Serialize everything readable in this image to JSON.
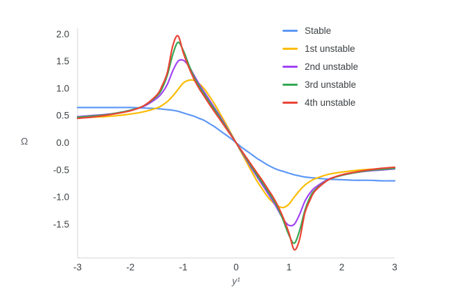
{
  "chart_data": {
    "type": "line",
    "title": "",
    "xlabel": "y¹",
    "ylabel": "Ω",
    "xlim": [
      -3,
      3
    ],
    "ylim": [
      -2.12,
      2.12
    ],
    "grid": false,
    "legend_position": "upper-right-inside",
    "x_tick_labels": [
      "-3",
      "-2",
      "-1",
      "0",
      "1",
      "2",
      "3"
    ],
    "x_tick_values": [
      -3,
      -2,
      -1,
      0,
      1,
      2,
      3
    ],
    "y_tick_labels": [
      "2.0",
      "1.5",
      "1.0",
      "0.5",
      "0.0",
      "-0.5",
      "-1.0",
      "-1.5"
    ],
    "y_tick_values": [
      2.0,
      1.5,
      1.0,
      0.5,
      0.0,
      -0.5,
      -1.0,
      -1.5
    ],
    "x": [
      -3,
      -2.75,
      -2.5,
      -2.25,
      -2,
      -1.75,
      -1.5,
      -1.4,
      -1.3,
      -1.2,
      -1.1,
      -1,
      -0.9,
      -0.8,
      -0.7,
      -0.6,
      -0.5,
      -0.4,
      -0.3,
      -0.2,
      -0.1,
      0,
      0.1,
      0.2,
      0.3,
      0.4,
      0.5,
      0.6,
      0.7,
      0.8,
      0.9,
      1,
      1.1,
      1.2,
      1.3,
      1.4,
      1.5,
      1.75,
      2,
      2.25,
      2.5,
      2.75,
      3
    ],
    "series": [
      {
        "name": "Stable",
        "color": "#5e97f6",
        "values": [
          0.65,
          0.65,
          0.65,
          0.65,
          0.65,
          0.64,
          0.63,
          0.62,
          0.61,
          0.6,
          0.58,
          0.55,
          0.52,
          0.49,
          0.45,
          0.41,
          0.35,
          0.29,
          0.22,
          0.15,
          0.08,
          0,
          -0.08,
          -0.15,
          -0.22,
          -0.29,
          -0.35,
          -0.41,
          -0.46,
          -0.5,
          -0.53,
          -0.56,
          -0.59,
          -0.61,
          -0.63,
          -0.64,
          -0.65,
          -0.67,
          -0.68,
          -0.69,
          -0.69,
          -0.7,
          -0.7
        ]
      },
      {
        "name": "1st unstable",
        "color": "#fbbc04",
        "values": [
          0.46,
          0.47,
          0.48,
          0.5,
          0.53,
          0.57,
          0.64,
          0.69,
          0.76,
          0.86,
          0.98,
          1.1,
          1.15,
          1.15,
          1.09,
          0.99,
          0.85,
          0.7,
          0.53,
          0.36,
          0.18,
          0,
          -0.18,
          -0.36,
          -0.54,
          -0.71,
          -0.86,
          -1.0,
          -1.1,
          -1.17,
          -1.19,
          -1.13,
          -1.0,
          -0.88,
          -0.78,
          -0.71,
          -0.66,
          -0.58,
          -0.54,
          -0.51,
          -0.49,
          -0.48,
          -0.47
        ]
      },
      {
        "name": "2nd unstable",
        "color": "#a142f4",
        "values": [
          0.48,
          0.5,
          0.52,
          0.55,
          0.6,
          0.67,
          0.82,
          0.92,
          1.08,
          1.32,
          1.5,
          1.52,
          1.42,
          1.25,
          1.08,
          0.93,
          0.78,
          0.63,
          0.48,
          0.32,
          0.16,
          0,
          -0.16,
          -0.32,
          -0.48,
          -0.63,
          -0.78,
          -0.93,
          -1.08,
          -1.25,
          -1.42,
          -1.52,
          -1.5,
          -1.32,
          -1.08,
          -0.92,
          -0.82,
          -0.67,
          -0.6,
          -0.55,
          -0.52,
          -0.5,
          -0.48
        ]
      },
      {
        "name": "3rd unstable",
        "color": "#34a853",
        "values": [
          0.47,
          0.49,
          0.51,
          0.55,
          0.6,
          0.68,
          0.86,
          1.0,
          1.25,
          1.62,
          1.85,
          1.7,
          1.45,
          1.22,
          1.04,
          0.89,
          0.74,
          0.6,
          0.45,
          0.3,
          0.15,
          0,
          -0.15,
          -0.3,
          -0.45,
          -0.6,
          -0.74,
          -0.89,
          -1.04,
          -1.22,
          -1.45,
          -1.7,
          -1.85,
          -1.62,
          -1.25,
          -1.0,
          -0.86,
          -0.68,
          -0.6,
          -0.55,
          -0.51,
          -0.49,
          -0.47
        ]
      },
      {
        "name": "4th unstable",
        "color": "#ea4335",
        "values": [
          0.45,
          0.47,
          0.5,
          0.54,
          0.59,
          0.68,
          0.88,
          1.05,
          1.3,
          1.78,
          1.97,
          1.66,
          1.4,
          1.18,
          1.0,
          0.85,
          0.7,
          0.56,
          0.42,
          0.28,
          0.14,
          0,
          -0.14,
          -0.28,
          -0.42,
          -0.56,
          -0.7,
          -0.85,
          -1.0,
          -1.18,
          -1.4,
          -1.66,
          -1.97,
          -1.78,
          -1.3,
          -1.05,
          -0.88,
          -0.68,
          -0.59,
          -0.54,
          -0.5,
          -0.47,
          -0.45
        ]
      }
    ]
  }
}
